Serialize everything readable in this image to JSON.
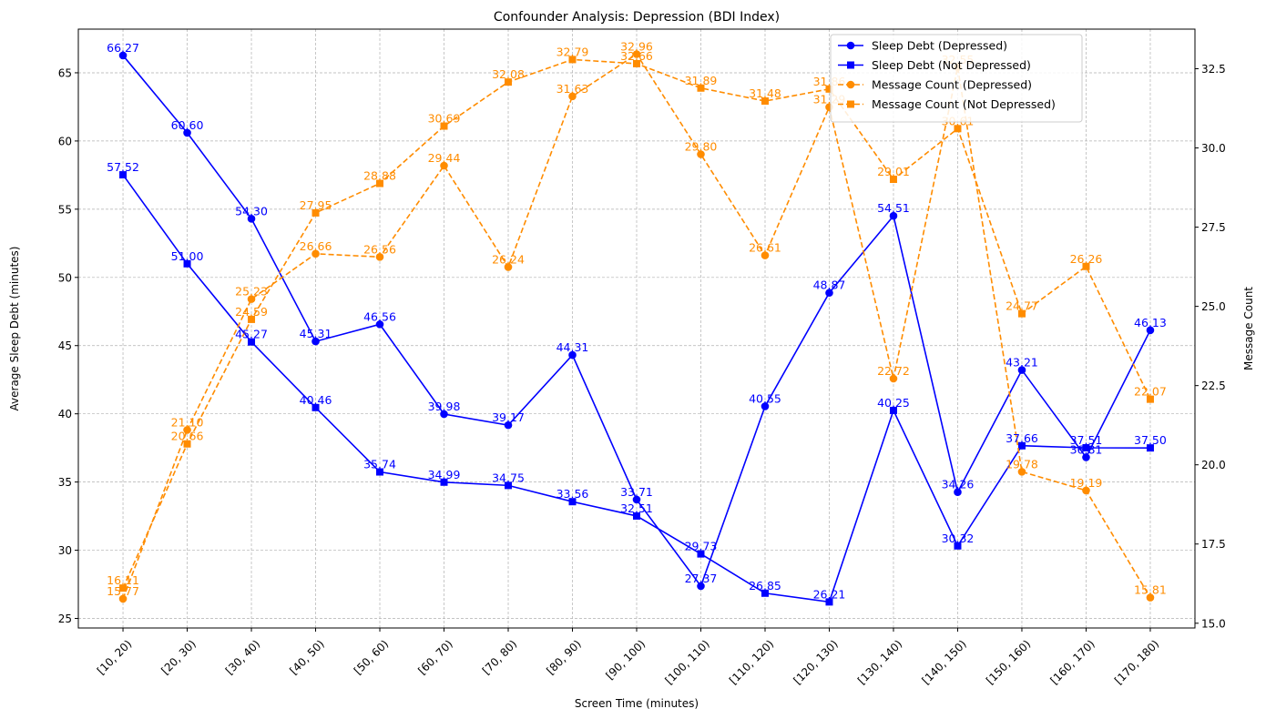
{
  "chart_data": {
    "type": "line",
    "title": "Confounder Analysis: Depression (BDI Index)",
    "xlabel": "Screen Time (minutes)",
    "ylabel": "Average Sleep Debt (minutes)",
    "y2label": "Message Count",
    "ylim": [
      24.3,
      68.2
    ],
    "y2lim": [
      14.85,
      33.75
    ],
    "yticks": [
      25,
      30,
      35,
      40,
      45,
      50,
      55,
      60,
      65
    ],
    "y2ticks": [
      15.0,
      17.5,
      20.0,
      22.5,
      25.0,
      27.5,
      30.0,
      32.5
    ],
    "y2tick_labels": [
      "15.0",
      "17.5",
      "20.0",
      "22.5",
      "25.0",
      "27.5",
      "30.0",
      "32.5"
    ],
    "grid": true,
    "legend_position": "top-right",
    "categories": [
      "[10, 20)",
      "[20, 30)",
      "[30, 40)",
      "[40, 50)",
      "[50, 60)",
      "[60, 70)",
      "[70, 80)",
      "[80, 90)",
      "[90, 100)",
      "[100, 110)",
      "[110, 120)",
      "[120, 130)",
      "[130, 140)",
      "[140, 150)",
      "[150, 160)",
      "[160, 170)",
      "[170, 180)"
    ],
    "series": [
      {
        "name": "Sleep Debt (Depressed)",
        "axis": "left",
        "color": "#0000ff",
        "marker": "circle",
        "linestyle": "solid",
        "values": [
          66.27,
          60.6,
          54.3,
          45.31,
          46.56,
          39.98,
          39.17,
          44.31,
          33.71,
          27.37,
          40.55,
          48.87,
          54.51,
          34.26,
          43.21,
          36.81,
          46.13
        ],
        "labels": [
          "66.27",
          "60.60",
          "54.30",
          "45.31",
          "46.56",
          "39.98",
          "39.17",
          "44.31",
          "33.71",
          "27.37",
          "40.55",
          "48.87",
          "54.51",
          "34.26",
          "43.21",
          "36.81",
          "46.13"
        ]
      },
      {
        "name": "Sleep Debt (Not Depressed)",
        "axis": "left",
        "color": "#0000ff",
        "marker": "square",
        "linestyle": "solid",
        "values": [
          57.52,
          51.0,
          45.27,
          40.46,
          35.74,
          34.99,
          34.75,
          33.56,
          32.51,
          29.73,
          26.85,
          26.21,
          40.25,
          30.32,
          37.66,
          37.51,
          37.5
        ],
        "labels": [
          "57.52",
          "51.00",
          "45.27",
          "40.46",
          "35.74",
          "34.99",
          "34.75",
          "33.56",
          "32.51",
          "29.73",
          "26.85",
          "26.21",
          "40.25",
          "30.32",
          "37.66",
          "37.51",
          "37.50"
        ]
      },
      {
        "name": "Message Count (Depressed)",
        "axis": "right",
        "color": "#ff8c00",
        "marker": "circle",
        "linestyle": "dashed",
        "values": [
          15.77,
          21.1,
          25.23,
          26.66,
          26.56,
          29.44,
          26.24,
          31.63,
          32.96,
          29.8,
          26.61,
          31.29,
          22.72,
          32.55,
          19.78,
          19.19,
          15.81
        ],
        "labels": [
          "15.77",
          "21.10",
          "25.23",
          "26.66",
          "26.56",
          "29.44",
          "26.24",
          "31.63",
          "32.96",
          "29.80",
          "26.61",
          "31.29",
          "22.72",
          "32.55",
          "19.78",
          "19.19",
          "15.81"
        ]
      },
      {
        "name": "Message Count (Not Depressed)",
        "axis": "right",
        "color": "#ff8c00",
        "marker": "square",
        "linestyle": "dashed",
        "values": [
          16.11,
          20.66,
          24.59,
          27.95,
          28.88,
          30.69,
          32.08,
          32.79,
          32.66,
          31.89,
          31.48,
          31.86,
          29.01,
          30.61,
          24.77,
          26.26,
          22.07
        ],
        "labels": [
          "16.11",
          "20.66",
          "24.59",
          "27.95",
          "28.88",
          "30.69",
          "32.08",
          "32.79",
          "32.66",
          "31.89",
          "31.48",
          "31.86",
          "29.01",
          "30.61",
          "24.77",
          "26.26",
          "22.07"
        ]
      }
    ]
  }
}
